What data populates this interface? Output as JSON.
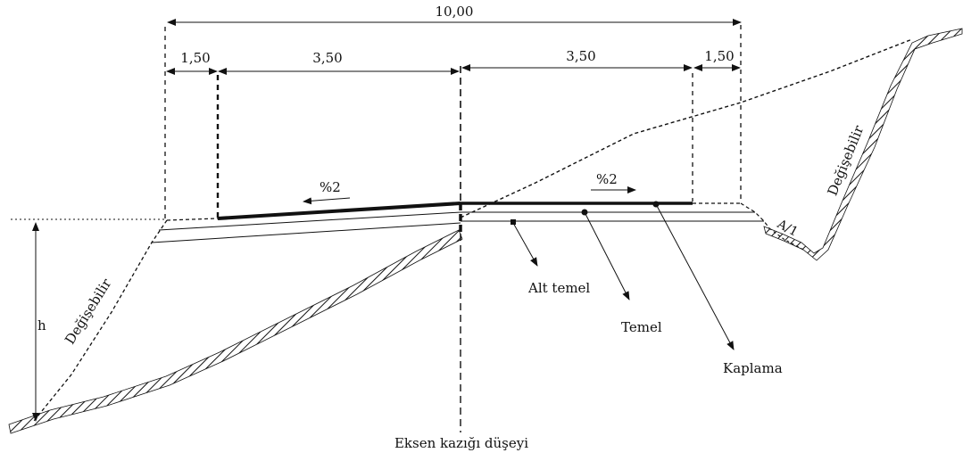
{
  "dimensions": {
    "total": "10,00",
    "left_shoulder": "1,50",
    "left_lane": "3,50",
    "right_lane": "3,50",
    "right_shoulder": "1,50"
  },
  "labels": {
    "slope_left": "%2",
    "slope_right": "%2",
    "variable_left": "Değişebilir",
    "variable_right": "Değişebilir",
    "ratio": "A/1",
    "height": "h",
    "subbase": "Alt temel",
    "base": "Temel",
    "surface": "Kaplama",
    "axis": "Eksen kazığı düşeyi"
  }
}
